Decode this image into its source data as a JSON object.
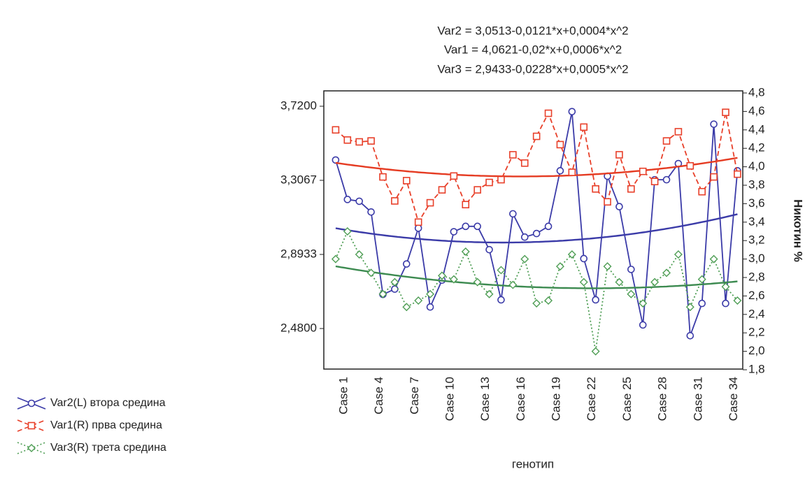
{
  "chart_data": {
    "type": "line",
    "title": [
      "Var2 = 3,0513-0,0121*x+0,0004*x^2",
      "Var1 = 4,0621-0,02*x+0,0006*x^2",
      "Var3 = 2,9433-0,0228*x+0,0005*x^2"
    ],
    "x_label": "генотип",
    "y2_label": "Никотин %",
    "categories": [
      "Case 1",
      null,
      null,
      "Case 4",
      null,
      null,
      "Case 7",
      null,
      null,
      "Case 10",
      null,
      null,
      "Case 13",
      null,
      null,
      "Case 16",
      null,
      null,
      "Case 19",
      null,
      null,
      "Case 22",
      null,
      null,
      "Case 25",
      null,
      null,
      "Case 28",
      null,
      null,
      "Case 31",
      null,
      null,
      "Case 34",
      null
    ],
    "ylim": [
      2.25,
      3.794
    ],
    "yticks": [
      {
        "value": 2.48,
        "label": "2,4800"
      },
      {
        "value": 2.8933,
        "label": "2,8933"
      },
      {
        "value": 3.3067,
        "label": "3,3067"
      },
      {
        "value": 3.72,
        "label": "3,7200"
      }
    ],
    "y2lim": [
      1.8,
      4.8
    ],
    "y2ticks": [
      {
        "value": 1.8,
        "label": "1,8"
      },
      {
        "value": 2.0,
        "label": "2,0"
      },
      {
        "value": 2.2,
        "label": "2,2"
      },
      {
        "value": 2.4,
        "label": "2,4"
      },
      {
        "value": 2.6,
        "label": "2,6"
      },
      {
        "value": 2.8,
        "label": "2,8"
      },
      {
        "value": 3.0,
        "label": "3,0"
      },
      {
        "value": 3.2,
        "label": "3,2"
      },
      {
        "value": 3.4,
        "label": "3,4"
      },
      {
        "value": 3.6,
        "label": "3,6"
      },
      {
        "value": 3.8,
        "label": "3,8"
      },
      {
        "value": 4.0,
        "label": "4,0"
      },
      {
        "value": 4.2,
        "label": "4,2"
      },
      {
        "value": 4.4,
        "label": "4,4"
      },
      {
        "value": 4.6,
        "label": "4,6"
      },
      {
        "value": 4.8,
        "label": "4,8"
      }
    ],
    "legend": "bottom-left",
    "series": [
      {
        "name": "Var2(L) втора средина",
        "color": "#3b3ba8",
        "fit_color": "#3b3ba8",
        "axis": "y",
        "marker": "circle",
        "line_style": "solid",
        "fit": [
          3.0513,
          -0.0121,
          0.0004
        ],
        "values": [
          3.42,
          3.2,
          3.19,
          3.13,
          2.67,
          2.7,
          2.84,
          3.04,
          2.6,
          2.75,
          3.02,
          3.05,
          3.05,
          2.92,
          2.64,
          3.12,
          2.99,
          3.01,
          3.05,
          3.36,
          3.69,
          2.87,
          2.64,
          3.33,
          3.16,
          2.81,
          2.5,
          3.31,
          3.31,
          3.4,
          2.44,
          2.62,
          3.62,
          2.62,
          3.36
        ]
      },
      {
        "name": "Var1(R) прва средина",
        "color": "#e8402a",
        "fit_color": "#e53b22",
        "axis": "y2",
        "marker": "square",
        "line_style": "dashed",
        "fit": [
          4.0621,
          -0.02,
          0.0006
        ],
        "values": [
          4.4,
          4.29,
          4.27,
          4.28,
          3.89,
          3.63,
          3.85,
          3.4,
          3.61,
          3.75,
          3.9,
          3.59,
          3.75,
          3.83,
          3.86,
          4.13,
          4.04,
          4.33,
          4.58,
          4.24,
          3.94,
          4.43,
          3.76,
          3.62,
          4.13,
          3.76,
          3.95,
          3.84,
          4.28,
          4.38,
          4.01,
          3.73,
          3.89,
          4.59,
          3.92
        ]
      },
      {
        "name": "Var3(R)   трета средина",
        "color": "#4f9e55",
        "fit_color": "#3c8a50",
        "axis": "y2",
        "marker": "diamond",
        "line_style": "dotted",
        "fit": [
          2.9433,
          -0.0228,
          0.0005
        ],
        "values": [
          3.0,
          3.3,
          3.05,
          2.85,
          2.62,
          2.75,
          2.48,
          2.55,
          2.62,
          2.82,
          2.78,
          3.08,
          2.75,
          2.62,
          2.88,
          2.72,
          3.0,
          2.52,
          2.55,
          2.92,
          3.05,
          2.75,
          2.0,
          2.92,
          2.75,
          2.62,
          2.52,
          2.75,
          2.85,
          3.05,
          2.48,
          2.78,
          3.0,
          2.7,
          2.55
        ]
      }
    ]
  }
}
